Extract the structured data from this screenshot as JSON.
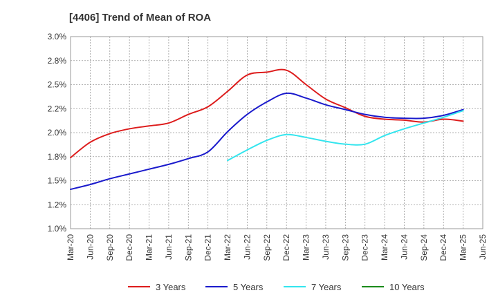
{
  "chart_data": {
    "type": "line",
    "title": "[4406]  Trend of Mean of ROA",
    "xlabel": "",
    "ylabel": "",
    "ylim": [
      1.0,
      3.0
    ],
    "yticks": [
      "1.0%",
      "1.2%",
      "1.5%",
      "1.8%",
      "2.0%",
      "2.2%",
      "2.5%",
      "2.8%",
      "3.0%"
    ],
    "ytick_values": [
      1.0,
      1.25,
      1.5,
      1.75,
      2.0,
      2.25,
      2.5,
      2.75,
      3.0
    ],
    "categories": [
      "Mar-20",
      "Jun-20",
      "Sep-20",
      "Dec-20",
      "Mar-21",
      "Jun-21",
      "Sep-21",
      "Dec-21",
      "Mar-22",
      "Jun-22",
      "Sep-22",
      "Dec-22",
      "Mar-23",
      "Jun-23",
      "Sep-23",
      "Dec-23",
      "Mar-24",
      "Jun-24",
      "Sep-24",
      "Dec-24",
      "Mar-25",
      "Jun-25"
    ],
    "grid": true,
    "legend_position": "bottom",
    "series": [
      {
        "name": "3 Years",
        "color": "#dd1c1c",
        "values": [
          1.74,
          1.9,
          1.99,
          2.04,
          2.07,
          2.1,
          2.19,
          2.27,
          2.43,
          2.6,
          2.63,
          2.65,
          2.5,
          2.35,
          2.26,
          2.17,
          2.14,
          2.13,
          2.11,
          2.14,
          2.12,
          null
        ]
      },
      {
        "name": "5 Years",
        "color": "#1a1acc",
        "values": [
          1.41,
          1.46,
          1.52,
          1.57,
          1.62,
          1.67,
          1.73,
          1.8,
          2.01,
          2.19,
          2.32,
          2.41,
          2.36,
          2.29,
          2.24,
          2.19,
          2.16,
          2.15,
          2.15,
          2.18,
          2.24,
          null
        ]
      },
      {
        "name": "7 Years",
        "color": "#33e5ee",
        "values": [
          null,
          null,
          null,
          null,
          null,
          null,
          null,
          null,
          1.71,
          1.82,
          1.92,
          1.98,
          1.95,
          1.91,
          1.88,
          1.88,
          1.97,
          2.04,
          2.1,
          2.16,
          2.23,
          null
        ]
      },
      {
        "name": "10 Years",
        "color": "#1a8a1a",
        "values": [
          null,
          null,
          null,
          null,
          null,
          null,
          null,
          null,
          null,
          null,
          null,
          null,
          null,
          null,
          null,
          null,
          null,
          null,
          null,
          null,
          null,
          null
        ]
      }
    ]
  }
}
